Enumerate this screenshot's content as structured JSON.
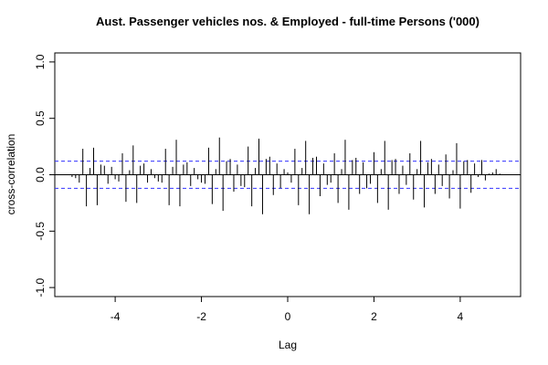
{
  "chart_data": {
    "type": "ccf",
    "title": "Aust. Passenger vehicles nos. & Employed - full-time Persons ('000)",
    "xlabel": "Lag",
    "ylabel": "cross-correlation",
    "xlim": [
      -5.4,
      5.4
    ],
    "ylim": [
      -1.08,
      1.08
    ],
    "xticks": [
      -4,
      -2,
      0,
      2,
      4
    ],
    "yticks": [
      {
        "value": -1,
        "label": "-1.0"
      },
      {
        "value": -0.5,
        "label": "-0.5"
      },
      {
        "value": 0,
        "label": "0.0"
      },
      {
        "value": 0.5,
        "label": "0.5"
      },
      {
        "value": 1,
        "label": "1.0"
      }
    ],
    "ci_lines": [
      0.12,
      -0.12
    ],
    "ci_color": "#3333ff",
    "color": "#000000",
    "x": [
      -5,
      -4.917,
      -4.833,
      -4.75,
      -4.667,
      -4.583,
      -4.5,
      -4.417,
      -4.333,
      -4.25,
      -4.167,
      -4.083,
      -4,
      -3.917,
      -3.833,
      -3.75,
      -3.667,
      -3.583,
      -3.5,
      -3.417,
      -3.333,
      -3.25,
      -3.167,
      -3.083,
      -3,
      -2.917,
      -2.833,
      -2.75,
      -2.667,
      -2.583,
      -2.5,
      -2.417,
      -2.333,
      -2.25,
      -2.167,
      -2.083,
      -2,
      -1.917,
      -1.833,
      -1.75,
      -1.667,
      -1.583,
      -1.5,
      -1.417,
      -1.333,
      -1.25,
      -1.167,
      -1.083,
      -1,
      -0.917,
      -0.833,
      -0.75,
      -0.667,
      -0.583,
      -0.5,
      -0.417,
      -0.333,
      -0.25,
      -0.167,
      -0.083,
      0,
      0.083,
      0.167,
      0.25,
      0.333,
      0.417,
      0.5,
      0.583,
      0.667,
      0.75,
      0.833,
      0.917,
      1,
      1.083,
      1.167,
      1.25,
      1.333,
      1.417,
      1.5,
      1.583,
      1.667,
      1.75,
      1.833,
      1.917,
      2,
      2.083,
      2.167,
      2.25,
      2.333,
      2.417,
      2.5,
      2.583,
      2.667,
      2.75,
      2.833,
      2.917,
      3,
      3.083,
      3.167,
      3.25,
      3.333,
      3.417,
      3.5,
      3.583,
      3.667,
      3.75,
      3.833,
      3.917,
      4,
      4.083,
      4.167,
      4.25,
      4.333,
      4.417,
      4.5,
      4.583,
      4.667,
      4.75,
      4.833,
      4.917,
      5
    ],
    "values": [
      -0.02,
      -0.03,
      -0.07,
      0.23,
      -0.28,
      0.06,
      0.24,
      -0.27,
      0.09,
      0.08,
      -0.08,
      0.07,
      -0.04,
      -0.06,
      0.19,
      -0.24,
      0.04,
      0.26,
      -0.25,
      0.08,
      0.1,
      -0.07,
      0.05,
      -0.03,
      -0.06,
      -0.07,
      0.23,
      -0.27,
      0.07,
      0.31,
      -0.28,
      0.09,
      0.11,
      -0.1,
      0.06,
      -0.04,
      -0.07,
      -0.08,
      0.24,
      -0.26,
      0.05,
      0.33,
      -0.32,
      0.12,
      0.14,
      -0.15,
      0.09,
      -0.1,
      -0.11,
      0.25,
      -0.28,
      0.06,
      0.32,
      -0.35,
      0.14,
      0.16,
      -0.18,
      0.1,
      -0.12,
      0.05,
      0.02,
      -0.07,
      0.23,
      -0.27,
      0.06,
      0.3,
      -0.35,
      0.15,
      0.16,
      -0.19,
      0.1,
      -0.09,
      -0.07,
      0.19,
      -0.25,
      0.05,
      0.31,
      -0.31,
      0.13,
      0.15,
      -0.17,
      0.11,
      -0.12,
      -0.08,
      0.2,
      -0.25,
      0.05,
      0.3,
      -0.31,
      0.13,
      0.14,
      -0.17,
      0.08,
      -0.09,
      0.19,
      -0.22,
      0.05,
      0.3,
      -0.29,
      0.11,
      0.14,
      -0.17,
      0.09,
      -0.1,
      0.18,
      -0.21,
      0.04,
      0.28,
      -0.3,
      0.12,
      0.13,
      -0.16,
      0.1,
      -0.02,
      0.13,
      -0.05,
      0.01,
      0.02,
      0.05,
      0.01,
      0.0
    ]
  }
}
